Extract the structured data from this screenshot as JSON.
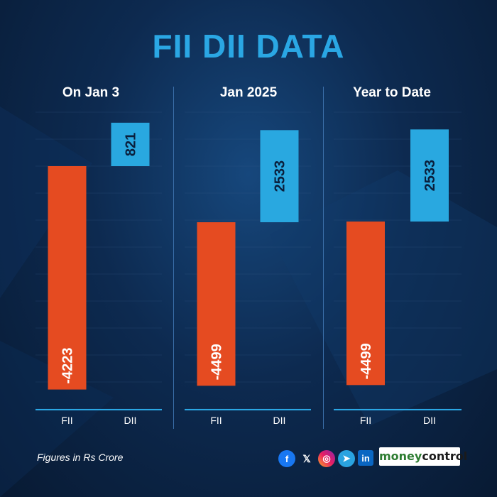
{
  "title": "FII DII DATA",
  "footer": {
    "note": "Figures in Rs Crore",
    "brand_part1": "money",
    "brand_part2": "control"
  },
  "social_icons": [
    "facebook-icon",
    "x-icon",
    "instagram-icon",
    "telegram-icon",
    "linkedin-icon"
  ],
  "colors": {
    "fii": "#e54b21",
    "dii": "#29a8e0",
    "title": "#2aa7e4",
    "background": "#0d2a50"
  },
  "chart_data": [
    {
      "type": "bar",
      "title": "On Jan 3",
      "categories": [
        "FII",
        "DII"
      ],
      "values": [
        -4223,
        821
      ]
    },
    {
      "type": "bar",
      "title": "Jan 2025",
      "categories": [
        "FII",
        "DII"
      ],
      "values": [
        -4499,
        2533
      ]
    },
    {
      "type": "bar",
      "title": "Year to Date",
      "categories": [
        "FII",
        "DII"
      ],
      "values": [
        -4499,
        2533
      ]
    }
  ]
}
